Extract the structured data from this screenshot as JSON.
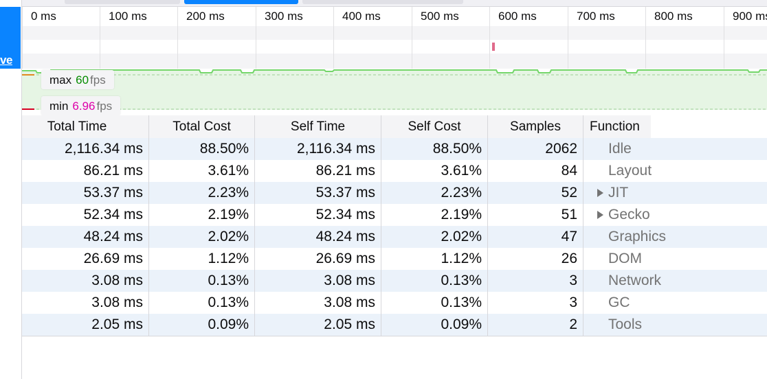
{
  "sidebar": {
    "tab_label": "ve"
  },
  "timeline": {
    "ticks": [
      "0 ms",
      "100 ms",
      "200 ms",
      "300 ms",
      "400 ms",
      "500 ms",
      "600 ms",
      "700 ms",
      "800 ms",
      "900 ms"
    ]
  },
  "fps": {
    "max_label": "max",
    "max_value": "60",
    "min_label": "min",
    "min_value": "6.96",
    "unit": "fps",
    "colors": {
      "max_value": "#058b00",
      "min_value": "#dd00a9",
      "graph_line": "#74d66a",
      "graph_fill": "#e6f5e4"
    }
  },
  "table": {
    "headers": [
      "Total Time",
      "Total Cost",
      "Self Time",
      "Self Cost",
      "Samples",
      "Function"
    ],
    "rows": [
      {
        "total_time": "2,116.34 ms",
        "total_cost": "88.50%",
        "self_time": "2,116.34 ms",
        "self_cost": "88.50%",
        "samples": "2062",
        "function": "Idle",
        "expandable": false
      },
      {
        "total_time": "86.21 ms",
        "total_cost": "3.61%",
        "self_time": "86.21 ms",
        "self_cost": "3.61%",
        "samples": "84",
        "function": "Layout",
        "expandable": false
      },
      {
        "total_time": "53.37 ms",
        "total_cost": "2.23%",
        "self_time": "53.37 ms",
        "self_cost": "2.23%",
        "samples": "52",
        "function": "JIT",
        "expandable": true
      },
      {
        "total_time": "52.34 ms",
        "total_cost": "2.19%",
        "self_time": "52.34 ms",
        "self_cost": "2.19%",
        "samples": "51",
        "function": "Gecko",
        "expandable": true
      },
      {
        "total_time": "48.24 ms",
        "total_cost": "2.02%",
        "self_time": "48.24 ms",
        "self_cost": "2.02%",
        "samples": "47",
        "function": "Graphics",
        "expandable": false
      },
      {
        "total_time": "26.69 ms",
        "total_cost": "1.12%",
        "self_time": "26.69 ms",
        "self_cost": "1.12%",
        "samples": "26",
        "function": "DOM",
        "expandable": false
      },
      {
        "total_time": "3.08 ms",
        "total_cost": "0.13%",
        "self_time": "3.08 ms",
        "self_cost": "0.13%",
        "samples": "3",
        "function": "Network",
        "expandable": false
      },
      {
        "total_time": "3.08 ms",
        "total_cost": "0.13%",
        "self_time": "3.08 ms",
        "self_cost": "0.13%",
        "samples": "3",
        "function": "GC",
        "expandable": false
      },
      {
        "total_time": "2.05 ms",
        "total_cost": "0.09%",
        "self_time": "2.05 ms",
        "self_cost": "0.09%",
        "samples": "2",
        "function": "Tools",
        "expandable": false
      }
    ]
  }
}
